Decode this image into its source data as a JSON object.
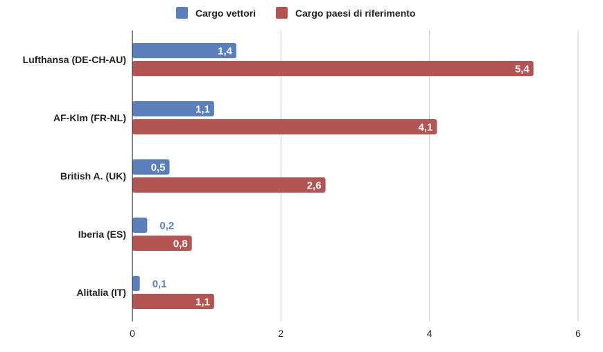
{
  "chart_data": {
    "type": "bar",
    "orientation": "horizontal",
    "categories": [
      "Lufthansa (DE-CH-AU)",
      "AF-Klm (FR-NL)",
      "British A. (UK)",
      "Iberia (ES)",
      "Alitalia (IT)"
    ],
    "series": [
      {
        "name": "Cargo vettori",
        "color": "#5b7fbb",
        "values": [
          1.4,
          1.1,
          0.5,
          0.2,
          0.1
        ],
        "labels": [
          "1,4",
          "1,1",
          "0,5",
          "0,2",
          "0,1"
        ]
      },
      {
        "name": "Cargo paesi di riferimento",
        "color": "#b35552",
        "values": [
          5.4,
          4.1,
          2.6,
          0.8,
          1.1
        ],
        "labels": [
          "5,4",
          "4,1",
          "2,6",
          "0,8",
          "1,1"
        ]
      }
    ],
    "xlim": [
      0,
      6
    ],
    "xticks": [
      0,
      2,
      4,
      6
    ],
    "xtick_labels": [
      "0",
      "2",
      "4",
      "6"
    ],
    "grid": true,
    "legend": "top-center",
    "title": "",
    "xlabel": "",
    "ylabel": ""
  }
}
